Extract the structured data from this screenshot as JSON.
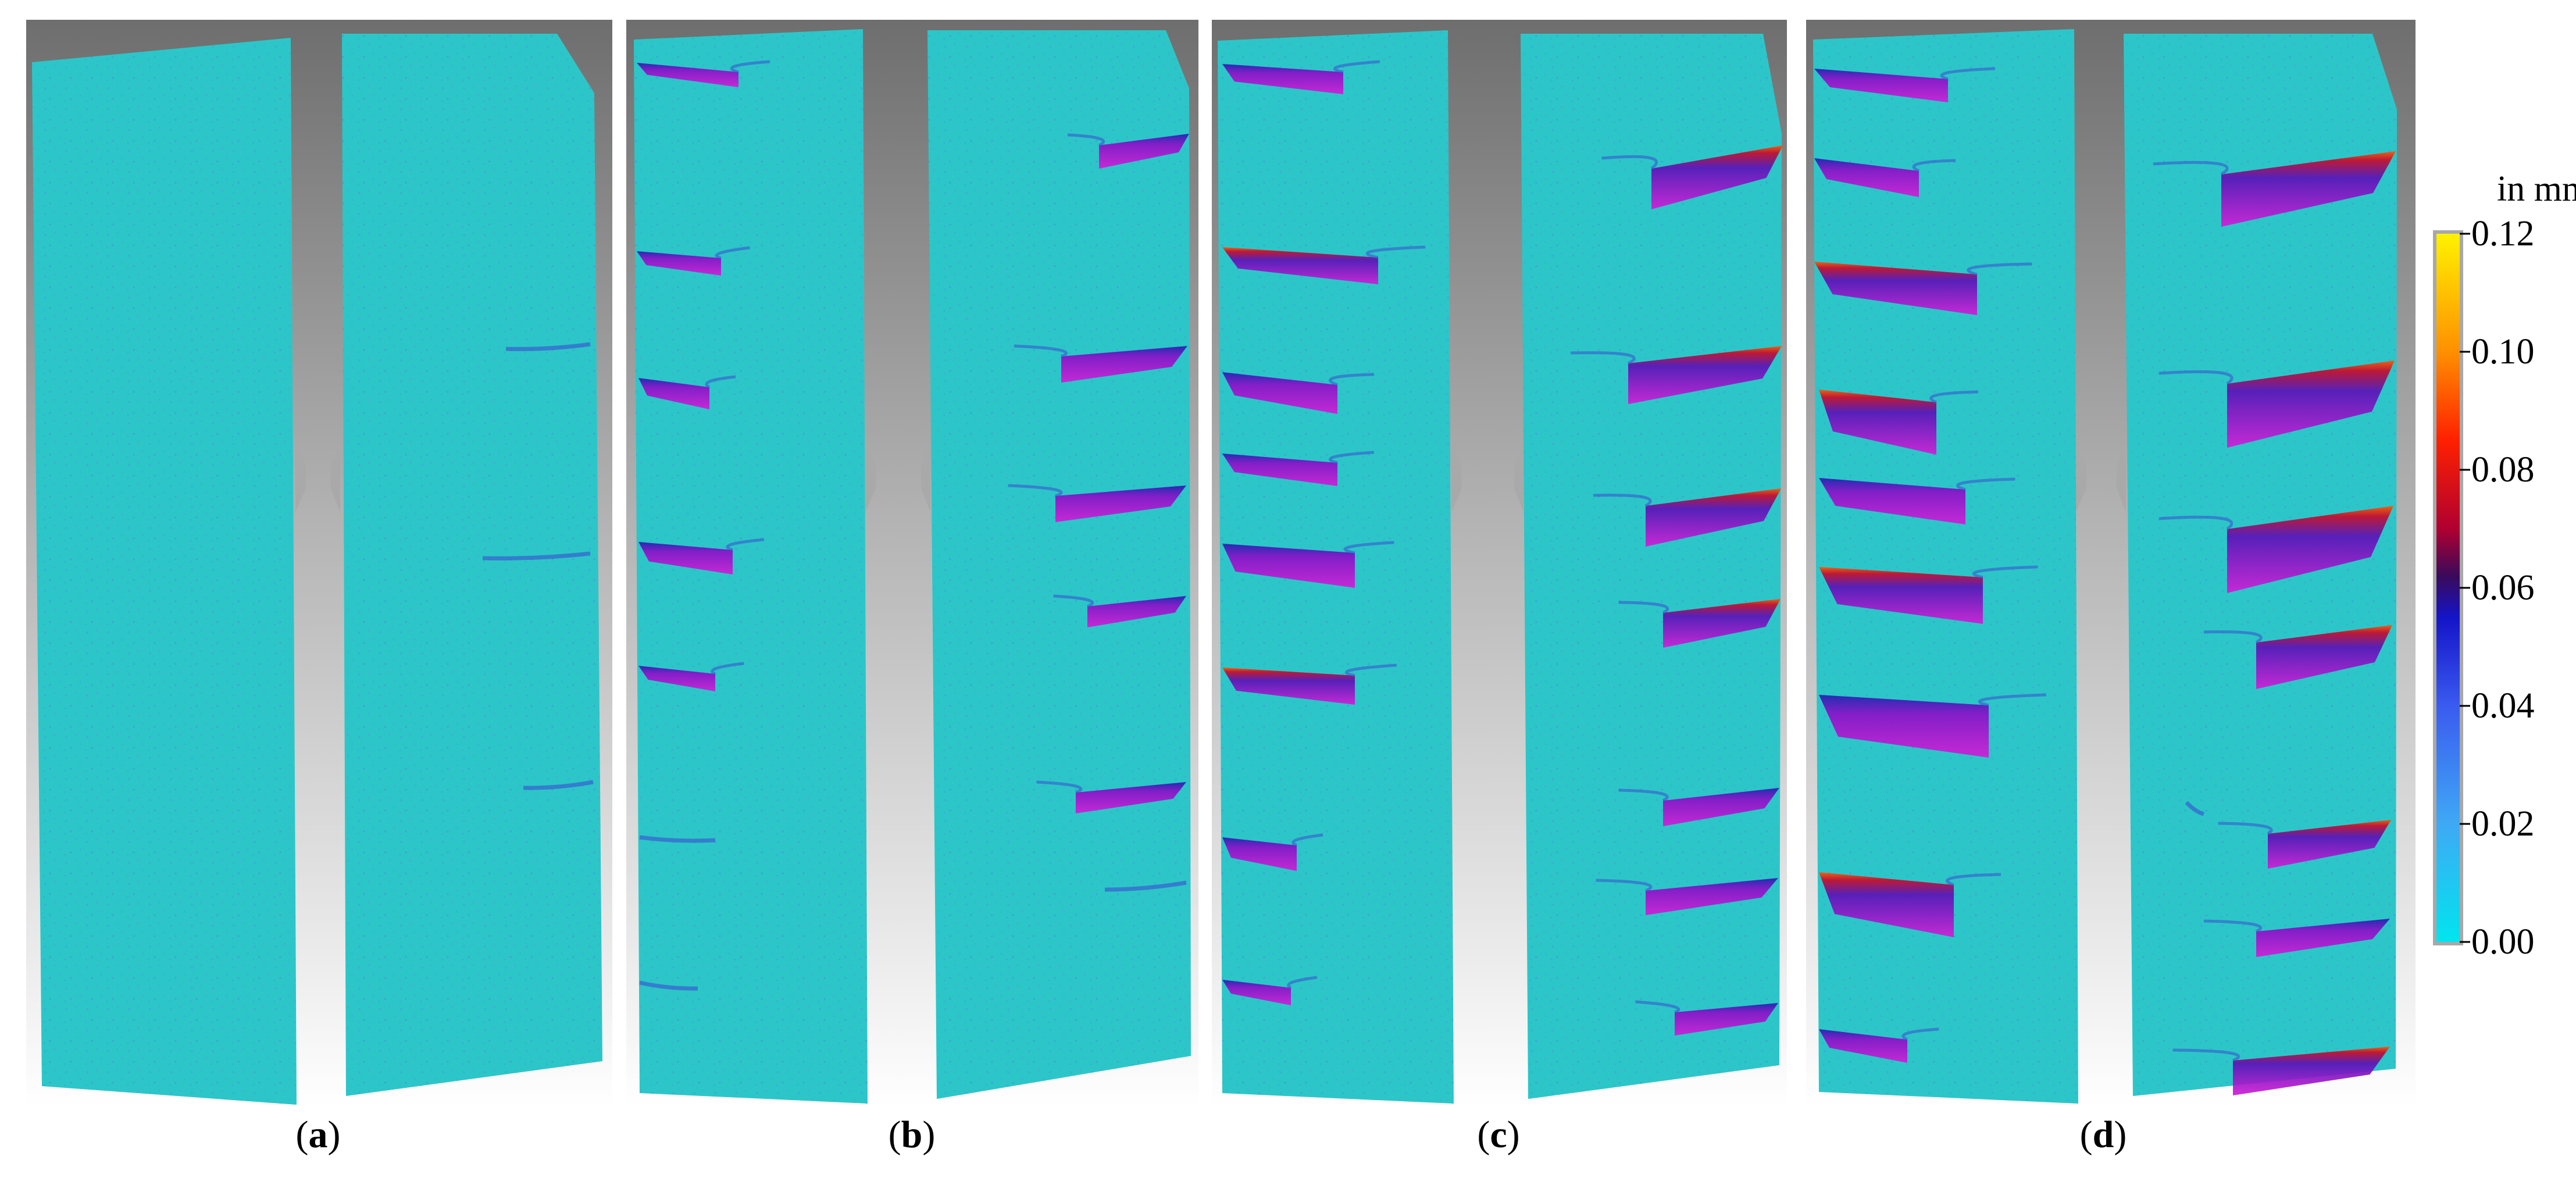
{
  "panels": [
    {
      "letter": "a",
      "label": "(a)"
    },
    {
      "letter": "b",
      "label": "(b)"
    },
    {
      "letter": "c",
      "label": "(c)"
    },
    {
      "letter": "d",
      "label": "(d)"
    }
  ],
  "colorbar": {
    "unit_label": "in mm",
    "min": 0.0,
    "max": 0.12,
    "tick_labels": [
      "0.12",
      "0.10",
      "0.08",
      "0.06",
      "0.04",
      "0.02",
      "0.00"
    ],
    "color_stops": [
      {
        "value": 0.0,
        "color": "#00e5ee"
      },
      {
        "value": 0.02,
        "color": "#3fa9f5"
      },
      {
        "value": 0.04,
        "color": "#3a5bf0"
      },
      {
        "value": 0.055,
        "color": "#1414c8"
      },
      {
        "value": 0.062,
        "color": "#3a0a5a"
      },
      {
        "value": 0.07,
        "color": "#b00030"
      },
      {
        "value": 0.085,
        "color": "#ff2000"
      },
      {
        "value": 0.1,
        "color": "#ff9000"
      },
      {
        "value": 0.12,
        "color": "#fff200"
      }
    ]
  },
  "colors": {
    "specimen_surface": "#2cc6c8",
    "crack_deep": "#c418d0",
    "crack_edge": "#2020b0",
    "backdrop_top": "#6f6f6f",
    "backdrop_bottom": "#ffffff"
  }
}
